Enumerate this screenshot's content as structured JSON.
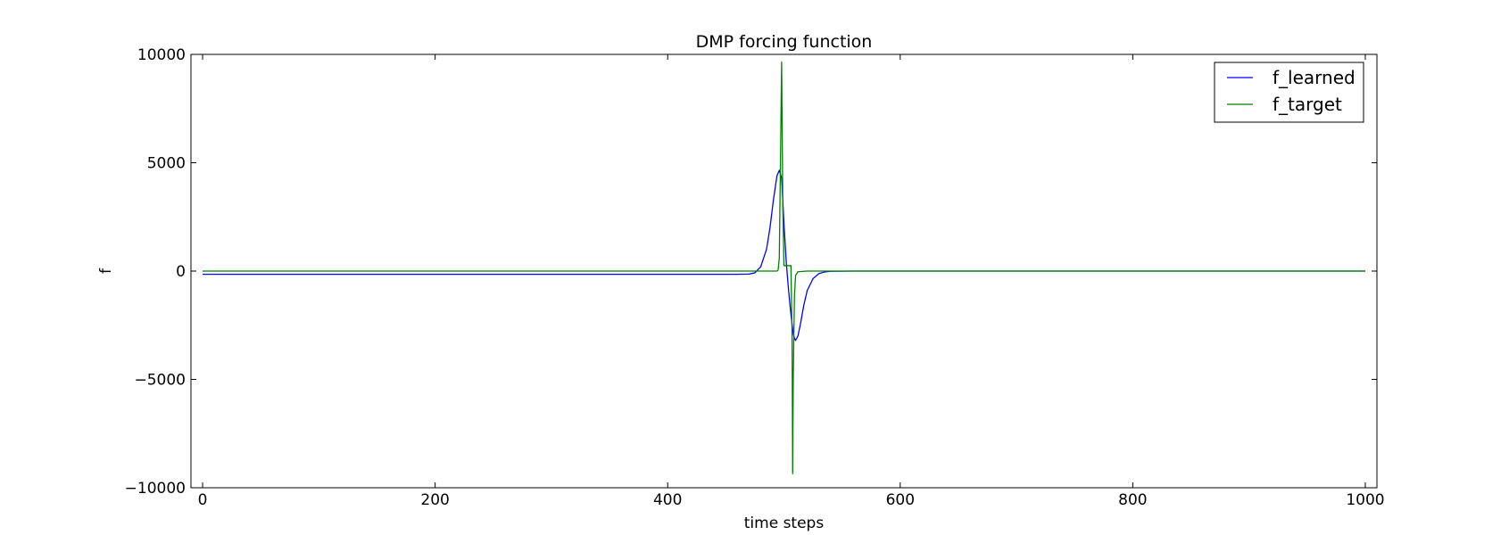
{
  "chart_data": {
    "type": "line",
    "title": "DMP forcing function",
    "xlabel": "time steps",
    "ylabel": "f",
    "xlim": [
      -10,
      1010
    ],
    "ylim": [
      -10000,
      10000
    ],
    "xticks": [
      0,
      200,
      400,
      600,
      800,
      1000
    ],
    "xtick_labels": [
      "0",
      "200",
      "400",
      "600",
      "800",
      "1000"
    ],
    "yticks": [
      10000,
      5000,
      0,
      -5000,
      -10000
    ],
    "ytick_labels": [
      "10000",
      "5000",
      "0",
      "−5000",
      "−10000"
    ],
    "grid": false,
    "legend_position": "top-right",
    "series": [
      {
        "name": "f_learned",
        "color": "#0000ff",
        "x": [
          0,
          460,
          470,
          475,
          480,
          485,
          488,
          491,
          494,
          496,
          498,
          500,
          502,
          504,
          506,
          508,
          509,
          510,
          512,
          514,
          517,
          520,
          525,
          530,
          535,
          540,
          560,
          1000
        ],
        "y": [
          -150,
          -150,
          -140,
          -80,
          200,
          1000,
          2000,
          3300,
          4400,
          4650,
          4300,
          2200,
          400,
          -900,
          -2000,
          -2900,
          -3100,
          -3200,
          -3000,
          -2500,
          -1600,
          -900,
          -350,
          -120,
          -40,
          -10,
          0,
          0
        ]
      },
      {
        "name": "f_target",
        "color": "#008000",
        "x": [
          0,
          494,
          495,
          496,
          497,
          498,
          499,
          500,
          501,
          505,
          506,
          507,
          507.5,
          508,
          509,
          510,
          512,
          520,
          1000
        ],
        "y": [
          0,
          0,
          50,
          600,
          5000,
          9650,
          3000,
          250,
          250,
          250,
          250,
          -3000,
          -9350,
          -5000,
          -1200,
          -200,
          -30,
          0,
          0
        ]
      }
    ]
  }
}
